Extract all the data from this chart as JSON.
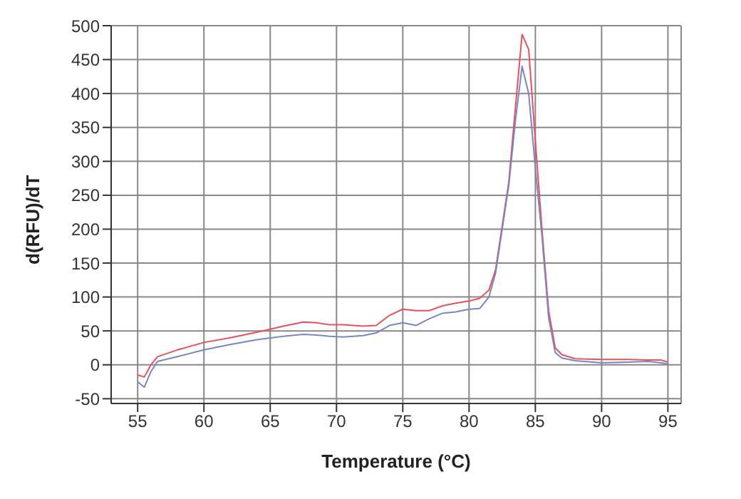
{
  "chart_data": {
    "type": "line",
    "xlabel": "Temperature (°C)",
    "ylabel": "d(RFU)/dT",
    "x": [
      55,
      55.5,
      56,
      56.5,
      58,
      60,
      62,
      64,
      66,
      67.5,
      68.5,
      69.5,
      70.5,
      72,
      73,
      74,
      75,
      76,
      77,
      78,
      79,
      80,
      80.8,
      81.5,
      82,
      83,
      83.5,
      84,
      84.5,
      85,
      85.5,
      86,
      86.5,
      87,
      88,
      90,
      92,
      93.5,
      94.5,
      95
    ],
    "series": [
      {
        "color": "#e8505a",
        "values": [
          -15,
          -18,
          0,
          12,
          22,
          33,
          40,
          48,
          57,
          63,
          62,
          59,
          59,
          57,
          58,
          73,
          82,
          80,
          80,
          87,
          91,
          94,
          98,
          110,
          140,
          270,
          380,
          487,
          465,
          330,
          200,
          80,
          25,
          15,
          9,
          8,
          8,
          7,
          7,
          4
        ]
      },
      {
        "color": "#7a86c0",
        "values": [
          -25,
          -33,
          -10,
          5,
          12,
          22,
          30,
          37,
          42,
          45,
          44,
          42,
          41,
          43,
          47,
          58,
          62,
          58,
          68,
          76,
          78,
          82,
          83,
          100,
          135,
          265,
          360,
          440,
          400,
          290,
          190,
          70,
          18,
          10,
          6,
          3,
          4,
          5,
          3,
          1
        ]
      }
    ],
    "xlim": [
      53,
      96
    ],
    "xticks": [
      55,
      60,
      65,
      70,
      75,
      80,
      85,
      90,
      95
    ],
    "ylim": [
      -57,
      500
    ],
    "yticks": [
      -50,
      0,
      50,
      100,
      150,
      200,
      250,
      300,
      350,
      400,
      450,
      500
    ],
    "grid": true,
    "marker": "none",
    "line_style": "solid"
  }
}
